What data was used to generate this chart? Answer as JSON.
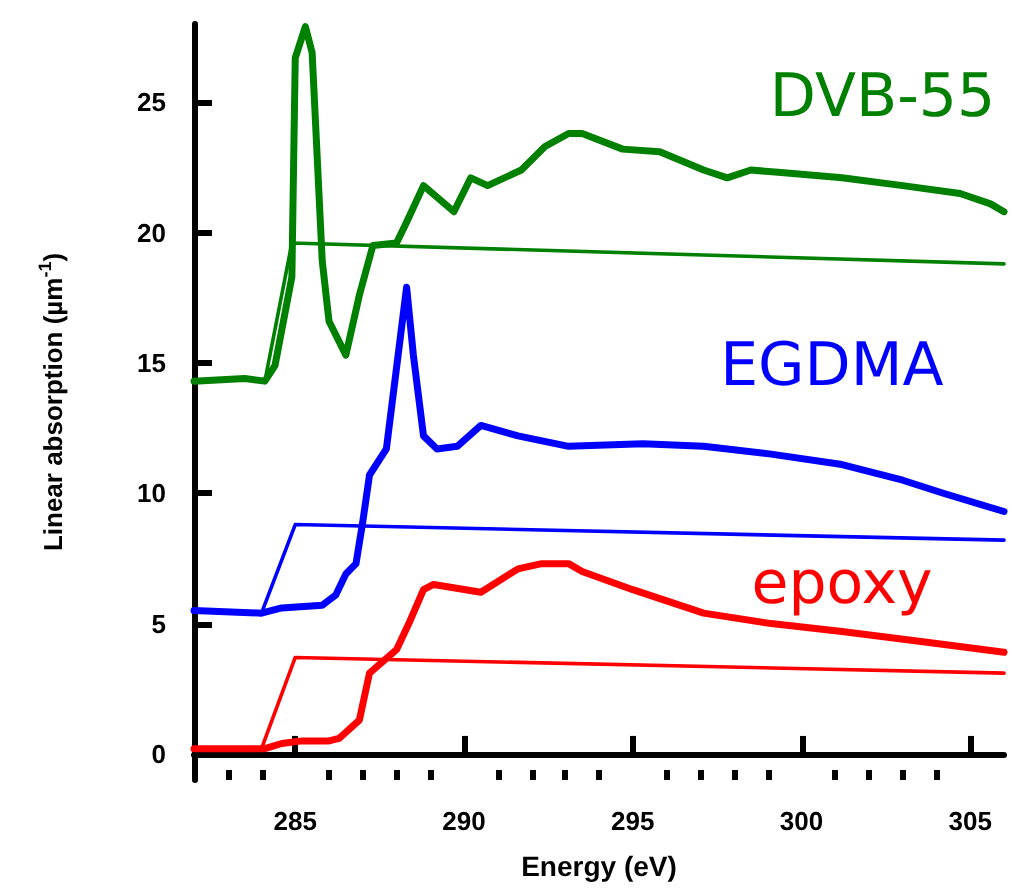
{
  "chart_data": {
    "type": "line",
    "xlabel": "Energy (eV)",
    "ylabel": "Linear absorption (µm$^{-1}$)",
    "xlim": [
      282,
      306
    ],
    "ylim": [
      -1,
      28
    ],
    "xticks": [
      {
        "value": 283,
        "label": null
      },
      {
        "value": 284,
        "label": null
      },
      285,
      {
        "value": 286,
        "label": null
      },
      {
        "value": 287,
        "label": null
      },
      {
        "value": 288,
        "label": null
      },
      {
        "value": 289,
        "label": null
      },
      290,
      {
        "value": 291,
        "label": null
      },
      {
        "value": 292,
        "label": null
      },
      {
        "value": 293,
        "label": null
      },
      {
        "value": 294,
        "label": null
      },
      295,
      {
        "value": 296,
        "label": null
      },
      {
        "value": 297,
        "label": null
      },
      {
        "value": 298,
        "label": null
      },
      {
        "value": 299,
        "label": null
      },
      300,
      {
        "value": 301,
        "label": null
      },
      {
        "value": 302,
        "label": null
      },
      {
        "value": 303,
        "label": null
      },
      {
        "value": 304,
        "label": null
      },
      305
    ],
    "yticks": [
      0,
      5,
      10,
      15,
      20,
      25
    ],
    "grid": false,
    "legend": false,
    "marker": "none",
    "line_style": "solid",
    "series": [
      {
        "name": "DVB-55",
        "color": "#008000",
        "x": [
          282.0,
          283.5,
          284.1,
          284.4,
          284.9,
          285.0,
          285.3,
          285.5,
          285.8,
          286.0,
          286.5,
          286.9,
          287.3,
          288.0,
          288.3,
          288.8,
          289.7,
          290.2,
          290.7,
          291.7,
          292.4,
          293.1,
          293.5,
          294.7,
          295.8,
          297.1,
          297.8,
          298.5,
          299.4,
          301.2,
          303.0,
          304.7,
          305.6,
          306.0
        ],
        "values": [
          14.3,
          14.4,
          14.3,
          14.9,
          18.3,
          26.7,
          27.9,
          26.9,
          18.9,
          16.6,
          15.3,
          17.6,
          19.5,
          19.6,
          20.4,
          21.8,
          20.8,
          22.1,
          21.8,
          22.4,
          23.3,
          23.8,
          23.8,
          23.2,
          23.1,
          22.4,
          22.1,
          22.4,
          22.3,
          22.1,
          21.8,
          21.5,
          21.1,
          20.8
        ]
      },
      {
        "color": "#008000",
        "x": [
          284.1,
          284.9,
          306.0
        ],
        "values": [
          14.3,
          19.6,
          18.8
        ]
      },
      {
        "name": "EGDMA",
        "color": "#0000ff",
        "x": [
          282.0,
          284.0,
          284.6,
          285.8,
          286.2,
          286.5,
          286.8,
          287.0,
          287.2,
          287.7,
          288.3,
          288.5,
          288.8,
          289.2,
          289.8,
          290.5,
          291.6,
          293.1,
          295.3,
          297.1,
          299.1,
          301.2,
          303.0,
          304.2,
          306.0
        ],
        "values": [
          5.5,
          5.4,
          5.6,
          5.7,
          6.1,
          6.9,
          7.3,
          8.9,
          10.7,
          11.7,
          17.9,
          15.3,
          12.2,
          11.7,
          11.8,
          12.6,
          12.2,
          11.8,
          11.9,
          11.8,
          11.5,
          11.1,
          10.5,
          10.0,
          9.3
        ]
      },
      {
        "color": "#0000ff",
        "x": [
          284.0,
          285.0,
          306.0
        ],
        "values": [
          5.4,
          8.8,
          8.2
        ]
      },
      {
        "name": "epoxy",
        "color": "#ff0000",
        "x": [
          282.0,
          284.1,
          284.6,
          285.2,
          286.0,
          286.3,
          286.9,
          287.2,
          288.0,
          288.4,
          288.8,
          289.1,
          290.5,
          291.6,
          292.3,
          293.1,
          293.5,
          295.0,
          297.1,
          299.1,
          301.2,
          303.6,
          306.0
        ],
        "values": [
          0.2,
          0.2,
          0.4,
          0.5,
          0.5,
          0.6,
          1.3,
          3.1,
          4.0,
          5.1,
          6.3,
          6.5,
          6.2,
          7.1,
          7.3,
          7.3,
          7.0,
          6.3,
          5.4,
          5.0,
          4.7,
          4.3,
          3.9
        ]
      },
      {
        "color": "#ff0000",
        "x": [
          284.0,
          285.0,
          306.0
        ],
        "values": [
          0.2,
          3.7,
          3.1
        ]
      }
    ]
  }
}
